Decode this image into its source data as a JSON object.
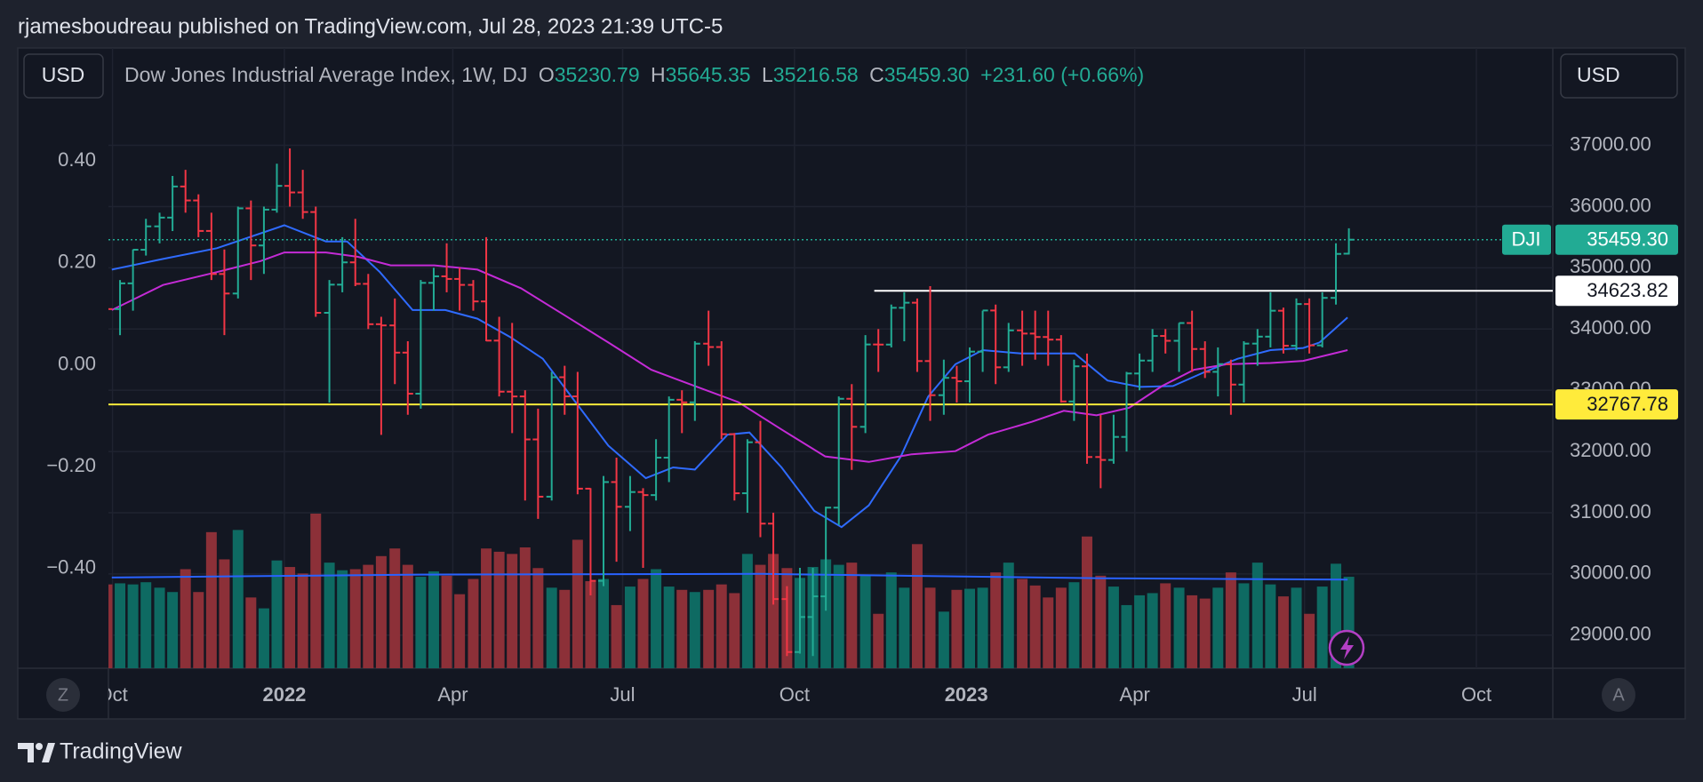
{
  "header": {
    "publisher": "rjamesboudreau published on TradingView.com, Jul 28, 2023 21:39 UTC-5"
  },
  "toolbar": {
    "currency_left": "USD",
    "currency_right": "USD",
    "z_button": "Z",
    "a_button": "A"
  },
  "footer": {
    "brand": "TradingView"
  },
  "chart_data": {
    "type": "ohlc",
    "title": "Dow Jones Industrial Average Index, 1W, DJ",
    "legend": {
      "o_label": "O",
      "o": "35230.79",
      "h_label": "H",
      "h": "35645.35",
      "l_label": "L",
      "l": "35216.58",
      "c_label": "C",
      "c": "35459.30",
      "change": "+231.60 (+0.66%)"
    },
    "up_color": "#22ab94",
    "down_color": "#f23645",
    "volume_colors": {
      "up": "#0e6a62",
      "down": "#8c3038"
    },
    "grid": true,
    "x": [
      2021.74,
      2021.759,
      2021.778,
      2021.797,
      2021.817,
      2021.836,
      2021.855,
      2021.874,
      2021.893,
      2021.912,
      2021.932,
      2021.951,
      2021.97,
      2021.989,
      2022.008,
      2022.027,
      2022.046,
      2022.066,
      2022.085,
      2022.104,
      2022.123,
      2022.142,
      2022.162,
      2022.181,
      2022.2,
      2022.219,
      2022.238,
      2022.257,
      2022.277,
      2022.296,
      2022.315,
      2022.334,
      2022.353,
      2022.372,
      2022.392,
      2022.411,
      2022.43,
      2022.449,
      2022.468,
      2022.487,
      2022.507,
      2022.526,
      2022.545,
      2022.564,
      2022.583,
      2022.602,
      2022.622,
      2022.641,
      2022.66,
      2022.679,
      2022.698,
      2022.717,
      2022.737,
      2022.756,
      2022.775,
      2022.794,
      2022.813,
      2022.832,
      2022.852,
      2022.871,
      2022.89,
      2022.909,
      2022.928,
      2022.947,
      2022.967,
      2022.986,
      2023.005,
      2023.024,
      2023.043,
      2023.062,
      2023.082,
      2023.101,
      2023.12,
      2023.139,
      2023.158,
      2023.177,
      2023.197,
      2023.216,
      2023.235,
      2023.254,
      2023.273,
      2023.292,
      2023.312,
      2023.331,
      2023.35,
      2023.369,
      2023.388,
      2023.407,
      2023.427,
      2023.446,
      2023.465,
      2023.484,
      2023.503,
      2023.522,
      2023.542,
      2023.561
    ],
    "open": [
      34800,
      34326,
      34746,
      35295,
      35677,
      35820,
      36328,
      36100,
      35602,
      34899,
      34580,
      35971,
      35365,
      35950,
      36338,
      36231,
      35911,
      34265,
      34725,
      35089,
      34738,
      34079,
      34059,
      33615,
      32944,
      34754,
      34861,
      34818,
      34721,
      34451,
      33811,
      32977,
      32899,
      32197,
      31262,
      33213,
      32900,
      31393,
      29888,
      31501,
      31097,
      31338,
      31288,
      31900,
      32845,
      32803,
      33761,
      33706,
      32283,
      31318,
      32151,
      30822,
      29590,
      28725,
      29297,
      29634,
      31083,
      32861,
      32403,
      33748,
      33746,
      34347,
      34430,
      33477,
      32920,
      33203,
      33147,
      33631,
      34303,
      33375,
      33978,
      33926,
      33870,
      33827,
      32817,
      33391,
      31910,
      31862,
      32238,
      33274,
      33485,
      33887,
      33808,
      34098,
      33674,
      33301,
      33427,
      33093,
      33762,
      33876,
      34299,
      33727,
      34408,
      33734,
      34509,
      35230.79
    ],
    "high": [
      34900,
      34800,
      35300,
      35800,
      35900,
      36500,
      36600,
      36200,
      35900,
      35300,
      36000,
      36100,
      36000,
      36700,
      36950,
      36600,
      36000,
      34800,
      35500,
      35800,
      34900,
      34200,
      34500,
      33800,
      34800,
      35000,
      35400,
      35000,
      34800,
      35500,
      34200,
      34100,
      33000,
      32700,
      33300,
      33400,
      33300,
      31400,
      31600,
      31900,
      31600,
      31400,
      32200,
      32900,
      33000,
      33800,
      34300,
      33800,
      32300,
      32200,
      32500,
      31000,
      29800,
      30100,
      30100,
      31100,
      32900,
      33100,
      33900,
      34000,
      34400,
      34600,
      34500,
      34700,
      33500,
      33400,
      33700,
      34300,
      34400,
      34100,
      34300,
      34300,
      34300,
      33900,
      33500,
      33600,
      32600,
      32600,
      33300,
      33600,
      34000,
      34000,
      34100,
      34300,
      33800,
      33700,
      33500,
      33800,
      34000,
      34600,
      34350,
      34500,
      34500,
      34600,
      35400,
      35645.35
    ],
    "low": [
      33900,
      33900,
      34300,
      35200,
      35400,
      35600,
      35900,
      35500,
      34800,
      33900,
      34500,
      34800,
      34900,
      35900,
      36000,
      35800,
      34200,
      32800,
      34600,
      34700,
      34000,
      32272,
      33100,
      32600,
      32700,
      34300,
      34600,
      34300,
      34300,
      33800,
      32900,
      32300,
      31200,
      30900,
      31200,
      32600,
      31300,
      29650,
      29800,
      30200,
      30700,
      30100,
      31200,
      31500,
      32300,
      32500,
      33400,
      32200,
      31200,
      31000,
      30600,
      29500,
      28660,
      28700,
      28660,
      29400,
      30800,
      31700,
      32300,
      33300,
      33700,
      33800,
      33300,
      32500,
      32600,
      32800,
      32800,
      33300,
      33100,
      33300,
      33400,
      33500,
      33400,
      32800,
      32500,
      31800,
      31400,
      31800,
      32000,
      33000,
      33300,
      33600,
      33300,
      33300,
      33200,
      32900,
      32600,
      32800,
      33400,
      33700,
      33600,
      33650,
      33600,
      33700,
      34400,
      35216.58
    ],
    "close": [
      34326,
      34746,
      35295,
      35677,
      35820,
      36328,
      36100,
      35602,
      34899,
      34580,
      35971,
      35365,
      35950,
      36338,
      36231,
      35911,
      34265,
      34725,
      35089,
      34738,
      34079,
      34059,
      33615,
      32944,
      34754,
      34861,
      34818,
      34721,
      34451,
      33811,
      32977,
      32899,
      32197,
      31262,
      33213,
      32900,
      31393,
      29888,
      31501,
      31097,
      31338,
      31288,
      31900,
      32845,
      32803,
      33761,
      33706,
      32283,
      31318,
      32151,
      30822,
      29590,
      28725,
      29297,
      29634,
      31083,
      32861,
      32403,
      33748,
      33746,
      34347,
      34430,
      33477,
      32920,
      33203,
      33147,
      33631,
      34303,
      33375,
      33978,
      33926,
      33870,
      33827,
      32817,
      33391,
      31910,
      31862,
      32238,
      33274,
      33485,
      33887,
      33808,
      34098,
      33674,
      33301,
      33427,
      33093,
      33762,
      33876,
      34299,
      33727,
      34408,
      33734,
      34509,
      35227,
      35459.3
    ],
    "volume": [
      1155,
      1170,
      1155,
      1185,
      1110,
      1050,
      1365,
      1050,
      1875,
      1500,
      1905,
      975,
      825,
      1485,
      1395,
      1305,
      2130,
      1455,
      1350,
      1365,
      1425,
      1545,
      1650,
      1425,
      1260,
      1335,
      1275,
      1020,
      1230,
      1650,
      1605,
      1575,
      1665,
      1380,
      1110,
      1080,
      1770,
      1200,
      1230,
      870,
      1125,
      1230,
      1365,
      1125,
      1080,
      1050,
      1080,
      1155,
      1035,
      1575,
      1425,
      1575,
      1380,
      1245,
      1395,
      1500,
      1425,
      1455,
      1275,
      750,
      1320,
      1110,
      1710,
      1110,
      780,
      1080,
      1095,
      1110,
      1320,
      1455,
      1230,
      1140,
      975,
      1110,
      1185,
      1815,
      1275,
      1125,
      870,
      1005,
      1035,
      1170,
      1110,
      1005,
      960,
      1110,
      1320,
      1170,
      1455,
      1155,
      990,
      1110,
      750,
      1125,
      1440,
      1260
    ],
    "volume_ma": {
      "color": "#2962ff",
      "x": [
        2021.747,
        2022.2,
        2022.7,
        2023.2,
        2023.559
      ],
      "values": [
        1250,
        1290,
        1300,
        1240,
        1220
      ]
    },
    "lines": [
      {
        "color": "#2f6bff",
        "x": [
          2021.747,
          2021.822,
          2021.901,
          2022.0,
          2022.061,
          2022.092,
          2022.14,
          2022.188,
          2022.236,
          2022.283,
          2022.331,
          2022.379,
          2022.427,
          2022.475,
          2022.53,
          2022.57,
          2022.602,
          2022.65,
          2022.682,
          2022.729,
          2022.777,
          2022.817,
          2022.857,
          2022.904,
          2022.944,
          2022.984,
          2023.024,
          2023.08,
          2023.159,
          2023.207,
          2023.255,
          2023.303,
          2023.35,
          2023.398,
          2023.446,
          2023.494,
          2023.518,
          2023.559
        ],
        "values": [
          34970,
          35145,
          35320,
          35695,
          35430,
          35430,
          34930,
          34310,
          34310,
          34170,
          33870,
          33515,
          32805,
          32095,
          31565,
          31740,
          31705,
          32275,
          32310,
          31740,
          31030,
          30765,
          31120,
          31920,
          32895,
          33425,
          33655,
          33600,
          33600,
          33160,
          33055,
          33070,
          33300,
          33515,
          33655,
          33690,
          33780,
          34190
        ]
      },
      {
        "color": "#c42bd6",
        "x": [
          2021.747,
          2021.822,
          2021.901,
          2021.965,
          2022.0,
          2022.061,
          2022.108,
          2022.156,
          2022.22,
          2022.283,
          2022.347,
          2022.411,
          2022.475,
          2022.538,
          2022.602,
          2022.666,
          2022.729,
          2022.793,
          2022.857,
          2022.92,
          2022.984,
          2023.032,
          2023.096,
          2023.143,
          2023.191,
          2023.239,
          2023.287,
          2023.334,
          2023.382,
          2023.446,
          2023.494,
          2023.559
        ],
        "values": [
          34310,
          34720,
          34930,
          35110,
          35250,
          35250,
          35180,
          35040,
          35040,
          34970,
          34665,
          34225,
          33780,
          33335,
          33070,
          32805,
          32360,
          31920,
          31830,
          31955,
          32005,
          32275,
          32485,
          32665,
          32590,
          32715,
          33070,
          33335,
          33425,
          33445,
          33480,
          33655
        ]
      }
    ],
    "xlim": [
      2021.742,
      2023.86
    ],
    "xticks": [
      {
        "value": 2021.748,
        "label": "Oct"
      },
      {
        "value": 2022.0,
        "label": "2022"
      },
      {
        "value": 2022.247,
        "label": "Apr"
      },
      {
        "value": 2022.496,
        "label": "Jul"
      },
      {
        "value": 2022.748,
        "label": "Oct"
      },
      {
        "value": 2023.0,
        "label": "2023"
      },
      {
        "value": 2023.247,
        "label": "Apr"
      },
      {
        "value": 2023.496,
        "label": "Jul"
      },
      {
        "value": 2023.748,
        "label": "Oct"
      }
    ],
    "ylim": [
      28460,
      38590
    ],
    "yticks": [
      {
        "value": 29000,
        "label": "29000.00"
      },
      {
        "value": 30000,
        "label": "30000.00"
      },
      {
        "value": 31000,
        "label": "31000.00"
      },
      {
        "value": 32000,
        "label": "32000.00"
      },
      {
        "value": 33000,
        "label": "33000.00"
      },
      {
        "value": 34000,
        "label": "34000.00"
      },
      {
        "value": 35000,
        "label": "35000.00"
      },
      {
        "value": 36000,
        "label": "36000.00"
      },
      {
        "value": 37000,
        "label": "37000.00"
      }
    ],
    "y2lim": [
      -0.596,
      0.622
    ],
    "y2ticks": [
      {
        "value": -0.4,
        "label": "−0.40"
      },
      {
        "value": -0.2,
        "label": "−0.20"
      },
      {
        "value": 0,
        "label": "0.00"
      },
      {
        "value": 0.2,
        "label": "0.20"
      },
      {
        "value": 0.4,
        "label": "0.40"
      }
    ],
    "price_lines": [
      {
        "value": 34623.82,
        "label": "34623.82",
        "color": "#ffffff",
        "start": 2022.865
      },
      {
        "value": 32767.78,
        "label": "32767.78",
        "color": "#ffeb3b"
      }
    ],
    "last_price": {
      "name": "DJI",
      "value": 35459.3,
      "label": "35459.30",
      "color": "#22ab94"
    }
  }
}
